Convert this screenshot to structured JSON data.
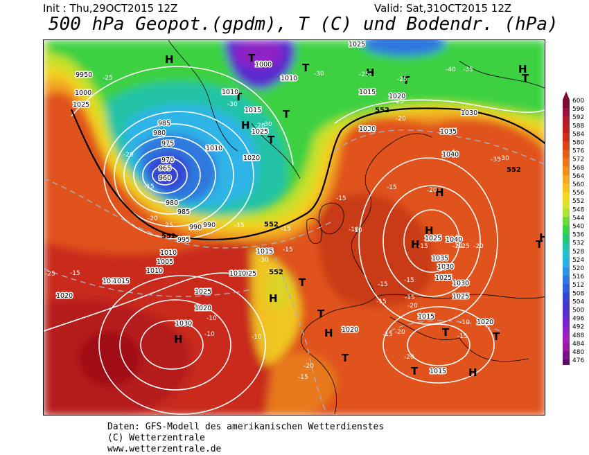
{
  "header": {
    "init": "Init : Thu,29OCT2015 12Z",
    "valid": "Valid: Sat,31OCT2015 12Z",
    "title": "500 hPa Geopot.(gpdm), T (C) und Bodendr. (hPa)"
  },
  "footer": {
    "line1": "Daten: GFS-Modell des amerikanischen Wetterdienstes",
    "line2": "(C) Wetterzentrale",
    "line3": "www.wetterzentrale.de"
  },
  "colors": {
    "deep_red": "#a00c16",
    "red": "#c92b1c",
    "orange_red": "#dd4a15",
    "orange": "#e8791b",
    "light_orange": "#f2a320",
    "yellow": "#f3d321",
    "yellow_green": "#cde32a",
    "green": "#45d63a",
    "bright_green": "#1fcf5a",
    "teal": "#23c5b6",
    "cyan": "#2fb4e6",
    "blue": "#2c7ce0",
    "deep_blue": "#3644d8",
    "violet": "#6a24d4",
    "purple": "#9a22c9"
  },
  "colorbar": {
    "labels": [
      "600",
      "596",
      "592",
      "588",
      "584",
      "580",
      "576",
      "572",
      "568",
      "564",
      "560",
      "556",
      "552",
      "548",
      "544",
      "540",
      "536",
      "532",
      "528",
      "524",
      "520",
      "516",
      "512",
      "508",
      "504",
      "500",
      "496",
      "492",
      "488",
      "484",
      "480",
      "476"
    ],
    "colors": [
      "#7d0a36",
      "#99123b",
      "#b01d2a",
      "#bf1f1d",
      "#cf2e18",
      "#db4516",
      "#e35e18",
      "#eb771b",
      "#f08f1d",
      "#f4a820",
      "#f6c021",
      "#f4d823",
      "#d8e52c",
      "#a9e23a",
      "#6bd93c",
      "#3dd143",
      "#24c86e",
      "#22c3a6",
      "#28bfd2",
      "#2bade5",
      "#2f93e3",
      "#2f78de",
      "#305dd8",
      "#3445d4",
      "#4235d0",
      "#5a2bce",
      "#7424cb",
      "#8e21c5",
      "#a31fb9",
      "#99189e",
      "#7a1382",
      "#5a0e66"
    ]
  },
  "map_labels": {
    "highs": [
      "H",
      "H",
      "H",
      "H",
      "H",
      "H",
      "H",
      "H",
      "H",
      "H",
      "H",
      "H"
    ],
    "lows": [
      "T",
      "T",
      "T",
      "T",
      "T",
      "T",
      "T",
      "T",
      "T",
      "T",
      "T",
      "T",
      "T",
      "T"
    ],
    "pressure": [
      "1000",
      "1005",
      "1010",
      "995",
      "1000",
      "1005",
      "995",
      "1000",
      "995",
      "995",
      "985",
      "980",
      "975",
      "970",
      "965",
      "960",
      "990",
      "995",
      "980",
      "985",
      "990",
      "1005",
      "1010",
      "1015",
      "1020",
      "1025",
      "1030",
      "1035",
      "1040",
      "1025",
      "1020",
      "1015",
      "1030",
      "1035",
      "1040",
      "1030",
      "1025",
      "1030",
      "1025",
      "1020",
      "1015",
      "1015",
      "1020",
      "1015",
      "1025",
      "1025",
      "1030",
      "1010",
      "1010",
      "1020",
      "1015",
      "995",
      "1000",
      "1025",
      "1010",
      "1000",
      "1015",
      "1010",
      "1025",
      "1010",
      "1020"
    ],
    "temps": [
      "-25",
      "-30",
      "-30",
      "-25",
      "-40",
      "-35",
      "-25",
      "-30",
      "-35",
      "-30",
      "-25",
      "-20",
      "-25",
      "-20",
      "-20",
      "-15",
      "-20",
      "-25",
      "-15",
      "-15",
      "-15",
      "-15",
      "-10",
      "-15",
      "-20",
      "-10",
      "-15",
      "-20",
      "-15",
      "-10",
      "-10",
      "-15",
      "-20",
      "-15",
      "-15",
      "-20",
      "-15",
      "-10",
      "-10",
      "-10",
      "-15",
      "-25",
      "-30",
      "-35",
      "-20",
      "-25",
      "-20",
      "-15",
      "-20",
      "-10",
      "-15"
    ],
    "geopot": [
      "552",
      "552",
      "552",
      "552",
      "552"
    ]
  }
}
